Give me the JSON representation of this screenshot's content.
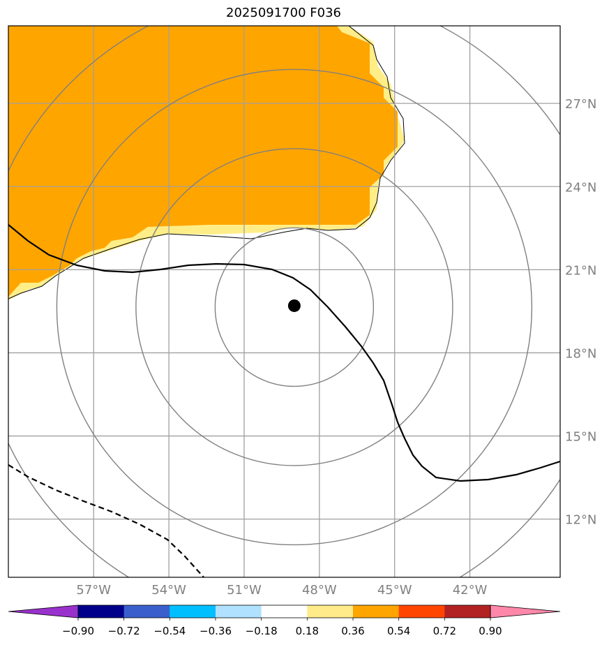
{
  "title": "2025091700 F036",
  "map": {
    "lon_range": [
      -60.4,
      -38.4
    ],
    "lat_range": [
      9.9,
      29.8
    ],
    "lon_ticks": [
      {
        "value": -57,
        "label": "57°W"
      },
      {
        "value": -54,
        "label": "54°W"
      },
      {
        "value": -51,
        "label": "51°W"
      },
      {
        "value": -48,
        "label": "48°W"
      },
      {
        "value": -45,
        "label": "45°W"
      },
      {
        "value": -42,
        "label": "42°W"
      }
    ],
    "lat_ticks": [
      {
        "value": 12,
        "label": "12°N"
      },
      {
        "value": 15,
        "label": "15°N"
      },
      {
        "value": 18,
        "label": "18°N"
      },
      {
        "value": 21,
        "label": "21°N"
      },
      {
        "value": 24,
        "label": "24°N"
      },
      {
        "value": 27,
        "label": "27°N"
      }
    ],
    "storm_center": {
      "lon": -49.0,
      "lat": 19.7
    },
    "grid_color": "#a0a0a0",
    "ring_color": "#808080",
    "fill_color": "#ffa500",
    "fill_edge_color": "#ffee88"
  },
  "colorbar": {
    "colors": [
      "#9932cc",
      "#00008b",
      "#3a5fcd",
      "#00bfff",
      "#b0e2ff",
      "#ffffff",
      "#ffeb8a",
      "#ffa500",
      "#ff4500",
      "#b22222",
      "#ff88aa"
    ],
    "labels": [
      "−0.90",
      "−0.72",
      "−0.54",
      "−0.36",
      "−0.18",
      "0.18",
      "0.36",
      "0.54",
      "0.72",
      "0.90"
    ],
    "boundaries": [
      -0.9,
      -0.72,
      -0.54,
      -0.36,
      -0.18,
      0.18,
      0.36,
      0.54,
      0.72,
      0.9
    ],
    "extend": "both"
  }
}
